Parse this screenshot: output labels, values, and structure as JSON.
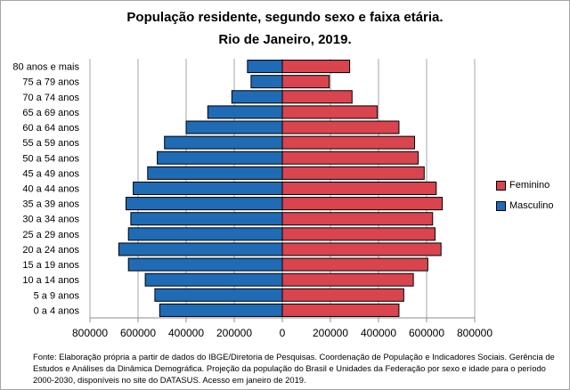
{
  "chart_data": {
    "type": "bar",
    "orientation": "horizontal",
    "subtype": "population-pyramid",
    "title": "População residente, segundo sexo e faixa etária.",
    "subtitle": "Rio de Janeiro, 2019.",
    "categories": [
      "0 a 4 anos",
      "5 a 9 anos",
      "10 a 14 anos",
      "15 a 19 anos",
      "20 a 24 anos",
      "25 a 29 anos",
      "30 a 34 anos",
      "35 a 39 anos",
      "40 a 44 anos",
      "45 a 49 anos",
      "50 a 54 anos",
      "55 a 59 anos",
      "60 a 64 anos",
      "65 a 69 anos",
      "70 a 74 anos",
      "75 a 79 anos",
      "80 anos e mais"
    ],
    "series": [
      {
        "name": "Masculino",
        "color": "#1f6bb5",
        "values": [
          -510000,
          -530000,
          -570000,
          -640000,
          -680000,
          -640000,
          -630000,
          -650000,
          -620000,
          -560000,
          -520000,
          -490000,
          -400000,
          -310000,
          -210000,
          -130000,
          -145000
        ]
      },
      {
        "name": "Feminino",
        "color": "#d9444f",
        "values": [
          485000,
          505000,
          545000,
          605000,
          660000,
          635000,
          625000,
          665000,
          640000,
          590000,
          565000,
          550000,
          485000,
          395000,
          290000,
          195000,
          280000
        ]
      }
    ],
    "xlim": [
      -800000,
      800000
    ],
    "xticks": [
      -800000,
      -600000,
      -400000,
      -200000,
      0,
      200000,
      400000,
      600000,
      800000
    ],
    "xtick_labels": [
      "800000",
      "600000",
      "400000",
      "200000",
      "0",
      "200000",
      "400000",
      "600000",
      "800000"
    ],
    "grid": true,
    "legend": {
      "position": "right",
      "entries": [
        "Feminino",
        "Masculino"
      ]
    },
    "xlabel": "",
    "ylabel": ""
  },
  "source": "Fonte:  Elaboração própria a partir de dados  do  IBGE/Diretoria de Pesquisas. Coordenação de População e Indicadores Sociais. Gerência de Estudos e Análises da Dinâmica Demográfica. Projeção da população do Brasil e Unidades da Federação por sexo e idade para o período 2000-2030, disponíveis no site do DATASUS. Acesso em  janeiro de 2019."
}
